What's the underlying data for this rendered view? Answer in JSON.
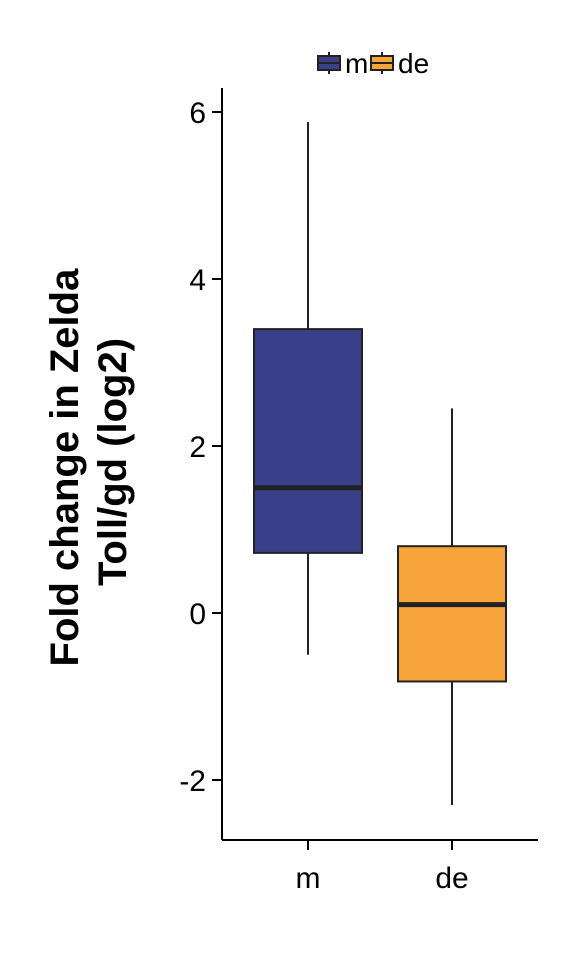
{
  "chart_data": {
    "type": "box",
    "title": "",
    "xlabel": "",
    "ylabel": [
      "Fold change in Zelda",
      "Toll/gd (log2)"
    ],
    "ylim": [
      -2.7,
      6.3
    ],
    "yticks": [
      -2,
      0,
      2,
      4,
      6
    ],
    "ytick_labels": [
      "-2",
      "0",
      "2",
      "4",
      "6"
    ],
    "categories": [
      "m",
      "de"
    ],
    "series": [
      {
        "name": "m",
        "color": "#3a3f8a",
        "whisker_low": -0.5,
        "q1": 0.72,
        "median": 1.5,
        "q3": 3.4,
        "whisker_high": 5.88
      },
      {
        "name": "de",
        "color": "#f7a43b",
        "whisker_low": -2.3,
        "q1": -0.82,
        "median": 0.1,
        "q3": 0.8,
        "whisker_high": 2.45
      }
    ],
    "legend": {
      "position": "top",
      "entries": [
        "m",
        "de"
      ]
    },
    "grid": false
  }
}
